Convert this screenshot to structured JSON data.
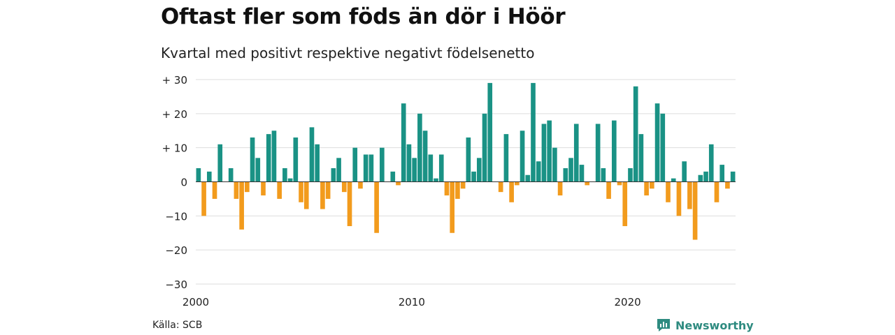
{
  "header": {
    "title": "Oftast fler som föds än dör i Höör",
    "subtitle": "Kvartal med positivt respektive negativt födelsenetto"
  },
  "footer": {
    "source": "Källa: SCB",
    "brand": "Newsworthy",
    "brand_icon": "bar-chart-speech-bubble-icon"
  },
  "colors": {
    "positive": "#1a9285",
    "negative": "#f29b1d",
    "grid": "#dddddd",
    "brand": "#2e8b80"
  },
  "chart_data": {
    "type": "bar",
    "title": "Oftast fler som föds än dör i Höör",
    "subtitle": "Kvartal med positivt respektive negativt födelsenetto",
    "xlabel": "",
    "ylabel": "",
    "ylim": [
      -30,
      30
    ],
    "yticks": [
      30,
      20,
      10,
      0,
      -10,
      -20,
      -30
    ],
    "ytick_labels": [
      "+ 30",
      "+ 20",
      "+ 10",
      "0",
      "−10",
      "−20",
      "−30"
    ],
    "xticks": [
      "2000",
      "2010",
      "2020"
    ],
    "grid": true,
    "x_start": "2000 Q1",
    "values": [
      4,
      -10,
      3,
      -5,
      11,
      0,
      4,
      -5,
      -14,
      -3,
      13,
      7,
      -4,
      14,
      15,
      -5,
      4,
      1,
      13,
      -6,
      -8,
      16,
      11,
      -8,
      -5,
      4,
      7,
      -3,
      -13,
      10,
      -2,
      8,
      8,
      -15,
      10,
      0,
      3,
      -1,
      23,
      11,
      7,
      20,
      15,
      8,
      1,
      8,
      -4,
      -15,
      -5,
      -2,
      13,
      3,
      7,
      20,
      29,
      0,
      -3,
      14,
      -6,
      -1,
      15,
      2,
      29,
      6,
      17,
      18,
      10,
      -4,
      4,
      7,
      17,
      5,
      -1,
      0,
      17,
      4,
      -5,
      18,
      -1,
      -13,
      4,
      28,
      14,
      -4,
      -2,
      23,
      20,
      -6,
      1,
      -10,
      6,
      -8,
      -17,
      2,
      3,
      11,
      -6,
      5,
      -2,
      3
    ]
  }
}
